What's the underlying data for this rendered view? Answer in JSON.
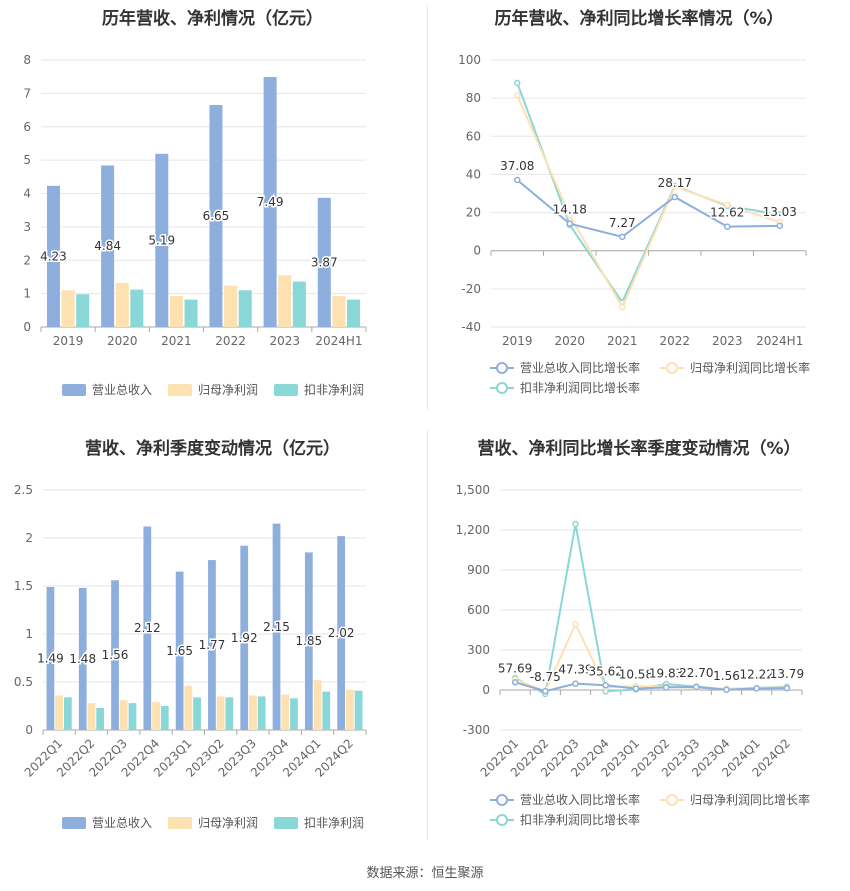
{
  "footer": {
    "source": "数据来源：恒生聚源"
  },
  "chart_data": [
    {
      "type": "bar",
      "title": "历年营收、净利情况（亿元）",
      "categories": [
        "2019",
        "2020",
        "2021",
        "2022",
        "2023",
        "2024H1"
      ],
      "ylim": [
        0,
        8
      ],
      "yticks": [
        0,
        1,
        2,
        3,
        4,
        5,
        6,
        7,
        8
      ],
      "series": [
        {
          "name": "营业总收入",
          "color": "#8eaedd",
          "values": [
            4.23,
            4.84,
            5.19,
            6.65,
            7.49,
            3.87
          ],
          "labels": [
            "4.23",
            "4.84",
            "5.19",
            "6.65",
            "7.49",
            "3.87"
          ]
        },
        {
          "name": "归母净利润",
          "color": "#fde1b1",
          "values": [
            1.1,
            1.32,
            0.93,
            1.24,
            1.55,
            0.93
          ]
        },
        {
          "name": "扣非净利润",
          "color": "#8ad7d8",
          "values": [
            0.98,
            1.12,
            0.82,
            1.1,
            1.36,
            0.82
          ]
        }
      ],
      "grid": true,
      "legend": "bottom"
    },
    {
      "type": "line",
      "title": "历年营收、净利同比增长率情况（%）",
      "categories": [
        "2019",
        "2020",
        "2021",
        "2022",
        "2023",
        "2024H1"
      ],
      "ylim": [
        -40,
        100
      ],
      "yticks": [
        -40,
        -20,
        0,
        20,
        40,
        60,
        80,
        100
      ],
      "series": [
        {
          "name": "营业总收入同比增长率",
          "color": "#8eaedd",
          "values": [
            37.08,
            14.18,
            7.27,
            28.17,
            12.62,
            13.03
          ],
          "labels": [
            "37.08",
            "14.18",
            "7.27",
            "28.17",
            "12.62",
            "13.03"
          ]
        },
        {
          "name": "归母净利润同比增长率",
          "color": "#fde1b1",
          "values": [
            81.5,
            18.5,
            -29.5,
            33.5,
            24,
            15
          ]
        },
        {
          "name": "扣非净利润同比增长率",
          "color": "#8ad7d8",
          "values": [
            88,
            13.5,
            -27,
            34,
            23.5,
            19
          ]
        }
      ],
      "grid": true,
      "legend": "bottom"
    },
    {
      "type": "bar",
      "title": "营收、净利季度变动情况（亿元）",
      "categories": [
        "2022Q1",
        "2022Q2",
        "2022Q3",
        "2022Q4",
        "2023Q1",
        "2023Q2",
        "2023Q3",
        "2023Q4",
        "2024Q1",
        "2024Q2"
      ],
      "ylim": [
        0,
        2.5
      ],
      "yticks": [
        0,
        0.5,
        1,
        1.5,
        2,
        2.5
      ],
      "series": [
        {
          "name": "营业总收入",
          "color": "#8eaedd",
          "values": [
            1.49,
            1.48,
            1.56,
            2.12,
            1.65,
            1.77,
            1.92,
            2.15,
            1.85,
            2.02
          ],
          "labels": [
            "1.49",
            "1.48",
            "1.56",
            "2.12",
            "1.65",
            "1.77",
            "1.92",
            "2.15",
            "1.85",
            "2.02"
          ]
        },
        {
          "name": "归母净利润",
          "color": "#fde1b1",
          "values": [
            0.36,
            0.28,
            0.31,
            0.29,
            0.46,
            0.35,
            0.36,
            0.37,
            0.52,
            0.42
          ]
        },
        {
          "name": "扣非净利润",
          "color": "#8ad7d8",
          "values": [
            0.34,
            0.23,
            0.28,
            0.25,
            0.34,
            0.34,
            0.35,
            0.33,
            0.4,
            0.41
          ]
        }
      ],
      "grid": true,
      "legend": "bottom"
    },
    {
      "type": "line",
      "title": "营收、净利同比增长率季度变动情况（%）",
      "categories": [
        "2022Q1",
        "2022Q2",
        "2022Q3",
        "2022Q4",
        "2023Q1",
        "2023Q2",
        "2023Q3",
        "2023Q4",
        "2024Q1",
        "2024Q2"
      ],
      "ylim": [
        -300,
        1500
      ],
      "yticks": [
        -300,
        0,
        300,
        600,
        900,
        1200,
        1500
      ],
      "ytick_labels": [
        "-300",
        "0",
        "300",
        "600",
        "900",
        "1,200",
        "1,500"
      ],
      "series": [
        {
          "name": "营业总收入同比增长率",
          "color": "#8eaedd",
          "values": [
            57.69,
            -8.75,
            47.39,
            35.62,
            10.58,
            19.83,
            22.7,
            1.56,
            12.22,
            13.79
          ],
          "labels": [
            "57.69",
            "-8.75",
            "47.39",
            "35.62",
            "10.58",
            "19.83",
            "22.70",
            "1.56",
            "12.22",
            "13.79"
          ]
        },
        {
          "name": "归母净利润同比增长率",
          "color": "#fde1b1",
          "values": [
            80,
            -10,
            495,
            20,
            30,
            25,
            15,
            10,
            15,
            20
          ]
        },
        {
          "name": "扣非净利润同比增长率",
          "color": "#8ad7d8",
          "values": [
            90,
            -30,
            1245,
            -10,
            5,
            45,
            25,
            5,
            15,
            25
          ]
        }
      ],
      "grid": true,
      "legend": "bottom"
    }
  ]
}
